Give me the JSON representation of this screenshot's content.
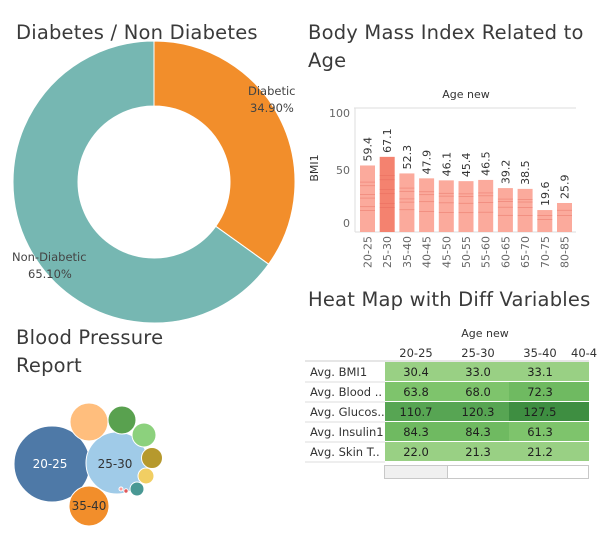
{
  "pie": {
    "title": "Diabetes / Non Diabetes",
    "slices": [
      {
        "label": "Diabetic",
        "pct": "34.90%",
        "value": 34.9,
        "color": "#f28e2b"
      },
      {
        "label": "Non-Diabetic",
        "pct": "65.10%",
        "value": 65.1,
        "color": "#76b7b2"
      }
    ]
  },
  "bmi": {
    "title_line1": "Body Mass Index Related to",
    "title_line2": "Age",
    "col_header": "Age new",
    "ylabel": "BMI1",
    "yticks": [
      "100",
      "50",
      "0"
    ]
  },
  "heat": {
    "title": "Heat Map with Diff Variables",
    "col_header": "Age new",
    "columns": [
      "20-25",
      "25-30",
      "35-40",
      "40-4"
    ],
    "rows": [
      "Avg. BMI1",
      "Avg. Blood ..",
      "Avg. Glucos..",
      "Avg. Insulin1",
      "Avg. Skin T.."
    ]
  },
  "bubble": {
    "title_line1": "Blood Pressure",
    "title_line2": "Report"
  },
  "chart_data": [
    {
      "type": "pie",
      "title": "Diabetes / Non Diabetes",
      "categories": [
        "Diabetic",
        "Non-Diabetic"
      ],
      "values": [
        34.9,
        65.1
      ]
    },
    {
      "type": "bar",
      "title": "Body Mass Index Related to Age",
      "xlabel": "Age new",
      "ylabel": "BMI1",
      "ylim": [
        0,
        100
      ],
      "categories": [
        "20-25",
        "25-30",
        "35-40",
        "40-45",
        "45-50",
        "50-55",
        "55-60",
        "60-65",
        "65-70",
        "70-75",
        "80-85"
      ],
      "values": [
        59.4,
        67.1,
        52.3,
        47.9,
        46.1,
        45.4,
        46.5,
        39.2,
        38.5,
        19.6,
        25.9
      ],
      "value_labels": [
        "59.4",
        "67.1",
        "52.3",
        "47.9",
        "46.1",
        "45.4",
        "46.5",
        "39.2",
        "38.5",
        "19.6",
        "25.9"
      ]
    },
    {
      "type": "heatmap",
      "title": "Heat Map with Diff Variables",
      "xlabel": "Age new",
      "columns": [
        "20-25",
        "25-30",
        "35-40"
      ],
      "rows": [
        "Avg. BMI1",
        "Avg. Blood ..",
        "Avg. Glucos..",
        "Avg. Insulin1",
        "Avg. Skin T.."
      ],
      "values": [
        [
          30.4,
          33.0,
          33.1
        ],
        [
          63.8,
          68.0,
          72.3
        ],
        [
          110.7,
          120.3,
          127.5
        ],
        [
          84.3,
          84.3,
          61.3
        ],
        [
          22.0,
          21.3,
          21.2
        ]
      ],
      "value_labels": [
        [
          "30.4",
          "33.0",
          "33.1"
        ],
        [
          "63.8",
          "68.0",
          "72.3"
        ],
        [
          "110.7",
          "120.3",
          "127.5"
        ],
        [
          "84.3",
          "84.3",
          "61.3"
        ],
        [
          "22.0",
          "21.3",
          "21.2"
        ]
      ]
    },
    {
      "type": "bubble",
      "title": "Blood Pressure Report",
      "labels": [
        "20-25",
        "25-30",
        "35-40"
      ]
    }
  ]
}
